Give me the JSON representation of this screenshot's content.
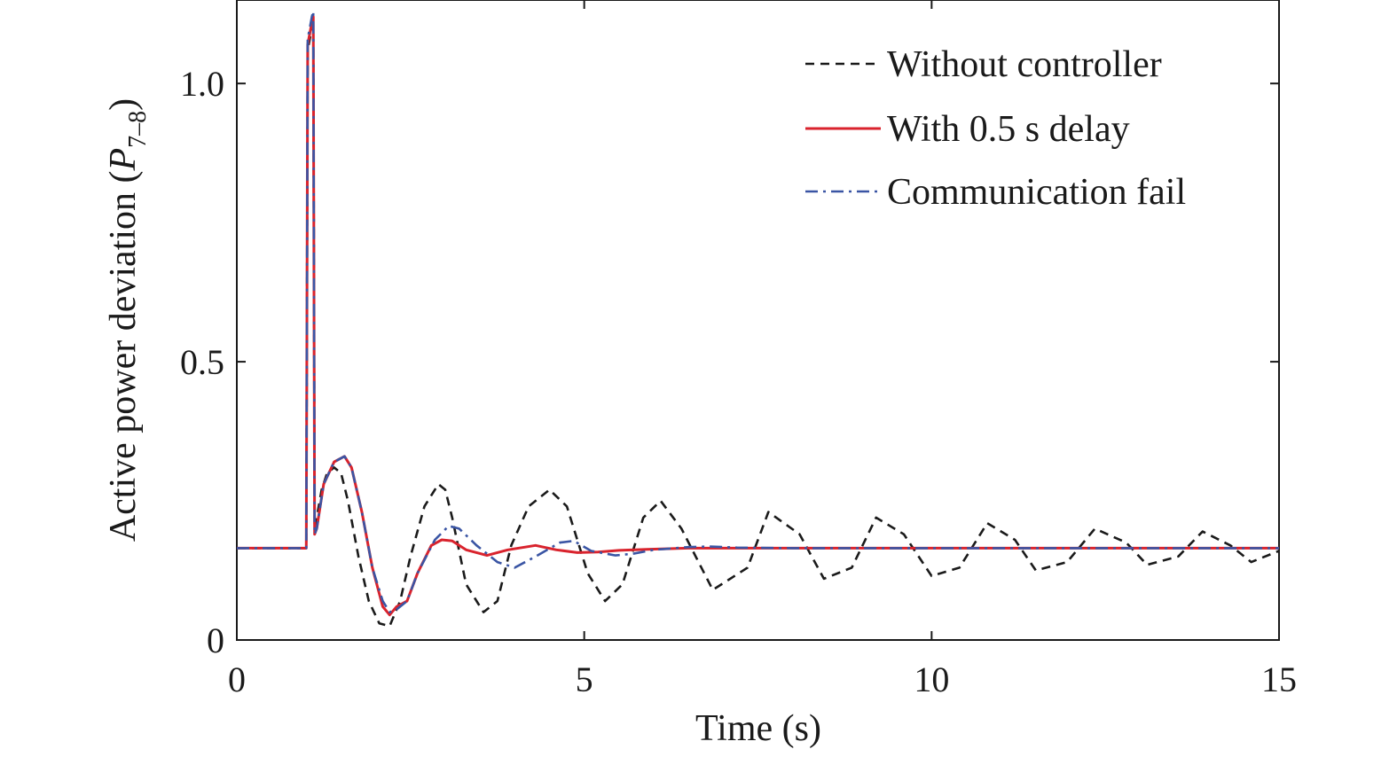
{
  "chart_data": {
    "type": "line",
    "xlabel": "Time (s)",
    "ylabel": {
      "main": "Active power deviation (",
      "symbol": "P",
      "subscript": "7–8",
      "close": ")"
    },
    "xlim": [
      0,
      15
    ],
    "ylim": [
      0,
      1.15
    ],
    "xticks": [
      0,
      5,
      10,
      15
    ],
    "xtick_labels": [
      "0",
      "5",
      "10",
      "15"
    ],
    "yticks": [
      0,
      0.5,
      1.0
    ],
    "ytick_labels": [
      "0",
      "0.5",
      "1.0"
    ],
    "grid": false,
    "legend_position": "top-right",
    "series": [
      {
        "name": "Without controller",
        "color": "#1a1a1a",
        "style": "dashed",
        "x": [
          0,
          1.0,
          1.02,
          1.05,
          1.08,
          1.1,
          1.12,
          1.15,
          1.22,
          1.3,
          1.4,
          1.5,
          1.6,
          1.75,
          1.9,
          2.05,
          2.2,
          2.35,
          2.5,
          2.7,
          2.9,
          3.0,
          3.1,
          3.3,
          3.55,
          3.75,
          3.95,
          4.2,
          4.5,
          4.75,
          5.05,
          5.3,
          5.55,
          5.85,
          6.1,
          6.4,
          6.85,
          7.35,
          7.65,
          8.1,
          8.45,
          8.85,
          9.2,
          9.6,
          10.0,
          10.4,
          10.8,
          11.2,
          11.5,
          11.95,
          12.35,
          12.8,
          13.1,
          13.55,
          13.9,
          14.3,
          14.6,
          15.0
        ],
        "y": [
          0.165,
          0.165,
          1.06,
          1.08,
          1.1,
          1.12,
          0.2,
          0.22,
          0.27,
          0.3,
          0.31,
          0.3,
          0.25,
          0.15,
          0.07,
          0.03,
          0.025,
          0.07,
          0.15,
          0.24,
          0.28,
          0.27,
          0.22,
          0.1,
          0.05,
          0.07,
          0.17,
          0.24,
          0.27,
          0.24,
          0.12,
          0.07,
          0.1,
          0.22,
          0.25,
          0.2,
          0.09,
          0.13,
          0.23,
          0.19,
          0.11,
          0.13,
          0.22,
          0.19,
          0.115,
          0.13,
          0.21,
          0.18,
          0.125,
          0.14,
          0.2,
          0.175,
          0.135,
          0.15,
          0.195,
          0.17,
          0.14,
          0.16
        ]
      },
      {
        "name": "With 0.5 s delay",
        "color": "#d9232d",
        "style": "solid",
        "x": [
          0,
          1.0,
          1.02,
          1.05,
          1.08,
          1.1,
          1.12,
          1.15,
          1.25,
          1.4,
          1.55,
          1.65,
          1.8,
          1.95,
          2.1,
          2.2,
          2.3,
          2.45,
          2.6,
          2.8,
          2.95,
          3.1,
          3.3,
          3.6,
          3.9,
          4.3,
          4.6,
          4.9,
          5.2,
          5.5,
          5.9,
          6.5,
          7.5,
          10.0,
          15.0
        ],
        "y": [
          0.165,
          0.165,
          1.07,
          1.09,
          1.11,
          1.12,
          0.19,
          0.2,
          0.28,
          0.32,
          0.33,
          0.31,
          0.23,
          0.13,
          0.06,
          0.045,
          0.06,
          0.07,
          0.12,
          0.17,
          0.18,
          0.178,
          0.162,
          0.152,
          0.162,
          0.17,
          0.162,
          0.157,
          0.158,
          0.161,
          0.163,
          0.165,
          0.165,
          0.165,
          0.165
        ]
      },
      {
        "name": "Communication fail",
        "color": "#3a55a4",
        "style": "dashdot",
        "x": [
          0,
          1.0,
          1.02,
          1.05,
          1.08,
          1.1,
          1.12,
          1.15,
          1.25,
          1.4,
          1.55,
          1.65,
          1.8,
          1.95,
          2.1,
          2.2,
          2.3,
          2.45,
          2.6,
          2.85,
          3.05,
          3.2,
          3.45,
          3.75,
          4.0,
          4.3,
          4.65,
          4.85,
          5.1,
          5.45,
          5.7,
          6.0,
          6.5,
          6.8,
          7.2,
          8.0,
          10.0,
          15.0
        ],
        "y": [
          0.165,
          0.165,
          1.08,
          1.1,
          1.12,
          1.13,
          0.19,
          0.2,
          0.28,
          0.32,
          0.33,
          0.31,
          0.23,
          0.13,
          0.07,
          0.05,
          0.055,
          0.07,
          0.12,
          0.18,
          0.205,
          0.2,
          0.17,
          0.14,
          0.13,
          0.15,
          0.175,
          0.178,
          0.16,
          0.152,
          0.155,
          0.162,
          0.167,
          0.168,
          0.166,
          0.165,
          0.165,
          0.165
        ]
      }
    ]
  }
}
